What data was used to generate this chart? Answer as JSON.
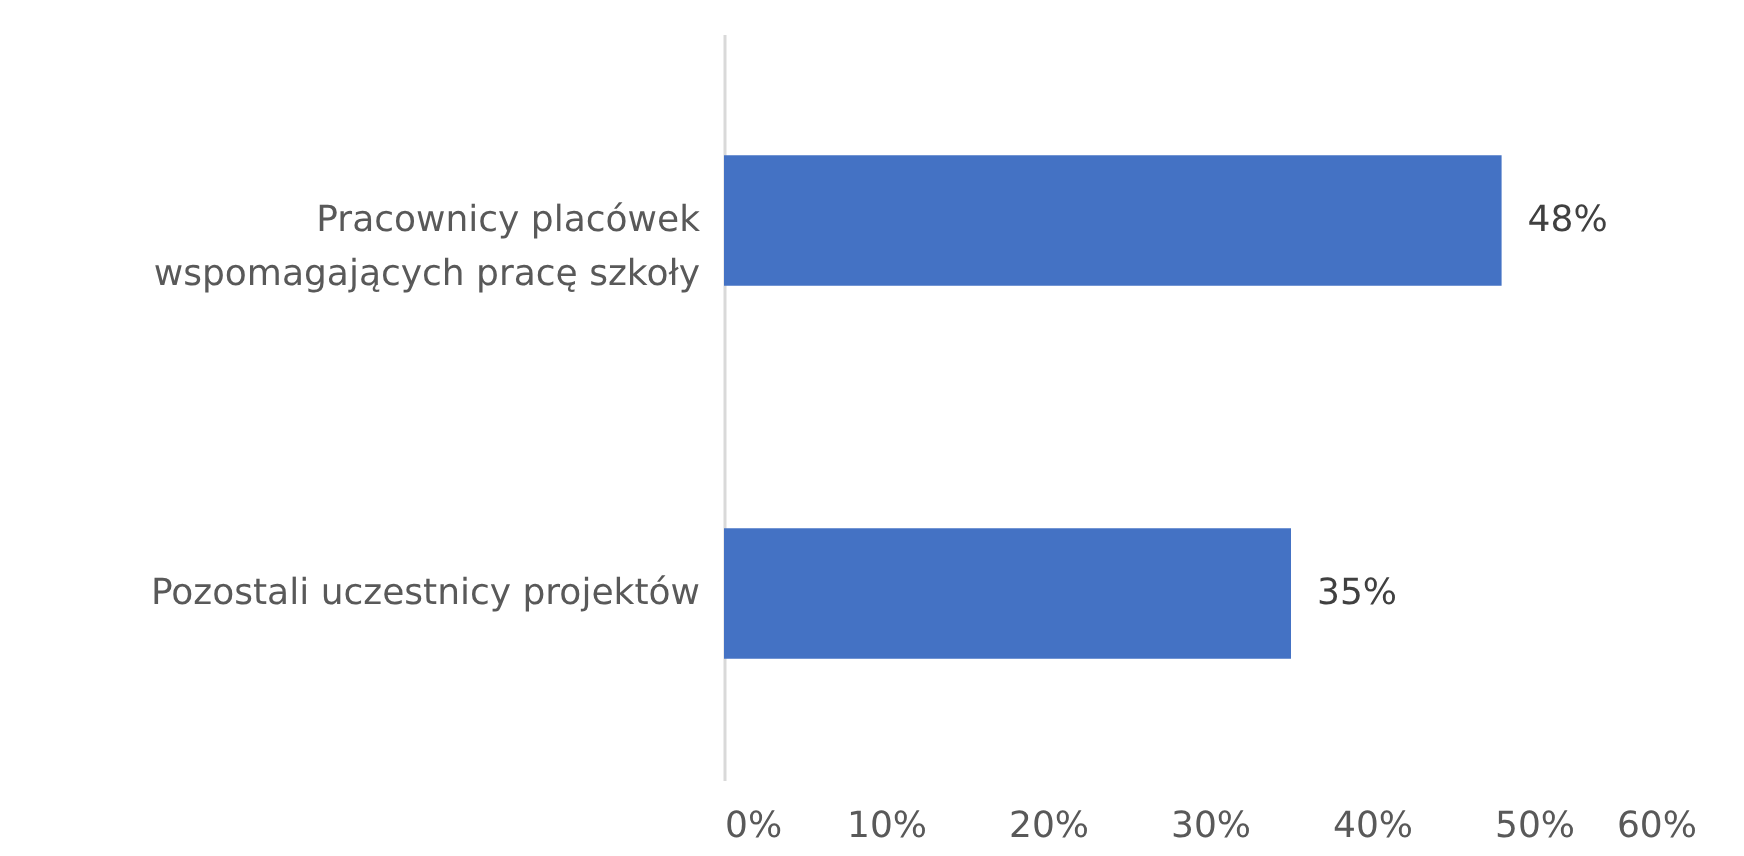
{
  "chart_data": {
    "type": "bar",
    "orientation": "horizontal",
    "categories": [
      "Pracownicy placówek wspomagających pracę szkoły",
      "Pozostali uczestnicy projektów"
    ],
    "values": [
      48,
      35
    ],
    "color": "#4472c4",
    "value_labels": [
      "48%",
      "35%"
    ],
    "xlim": [
      0,
      60
    ],
    "xticks": [
      {
        "value": 0,
        "label": "0%"
      },
      {
        "value": 10,
        "label": "10%"
      },
      {
        "value": 20,
        "label": "20%"
      },
      {
        "value": 30,
        "label": "30%"
      },
      {
        "value": 40,
        "label": "40%"
      },
      {
        "value": 50,
        "label": "50%"
      },
      {
        "value": 60,
        "label": "60%"
      }
    ]
  }
}
